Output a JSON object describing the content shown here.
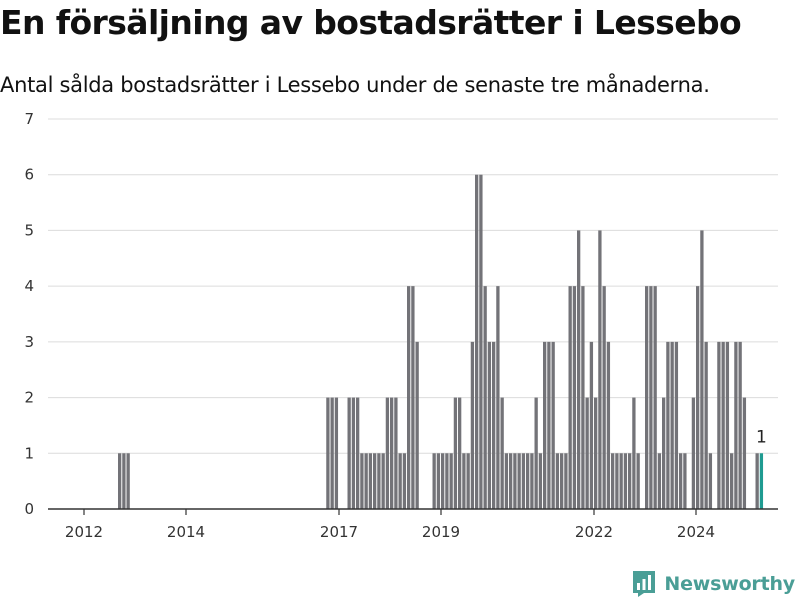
{
  "title": "En försäljning av bostadsrätter i Lessebo",
  "subtitle": "Antal sålda bostadsrätter i Lessebo under de senaste tre månaderna.",
  "brand": "Newsworthy",
  "colors": {
    "bar": "#737378",
    "highlight": "#1f9b91",
    "grid": "#dcdcdc",
    "axis": "#333333",
    "brand": "#4a9e96"
  },
  "chart_data": {
    "type": "bar",
    "title": "En försäljning av bostadsrätter i Lessebo",
    "subtitle": "Antal sålda bostadsrätter i Lessebo under de senaste tre månaderna.",
    "xlabel": "",
    "ylabel": "",
    "ylim": [
      0,
      7
    ],
    "yticks": [
      0,
      1,
      2,
      3,
      4,
      5,
      6,
      7
    ],
    "grid": true,
    "period": "quarter",
    "xticks": [
      {
        "year": 2012,
        "label": "2012"
      },
      {
        "year": 2014,
        "label": "2014"
      },
      {
        "year": 2017,
        "label": "2017"
      },
      {
        "year": 2019,
        "label": "2019"
      },
      {
        "year": 2022,
        "label": "2022"
      },
      {
        "year": 2024,
        "label": "2024"
      }
    ],
    "series": [
      {
        "values": [
          {
            "x": "2012-09",
            "y": 1
          },
          {
            "x": "2012-10",
            "y": 1
          },
          {
            "x": "2012-11",
            "y": 1
          },
          {
            "x": "2016-10",
            "y": 2
          },
          {
            "x": "2016-11",
            "y": 2
          },
          {
            "x": "2016-12",
            "y": 2
          },
          {
            "x": "2017-03",
            "y": 2
          },
          {
            "x": "2017-04",
            "y": 2
          },
          {
            "x": "2017-05",
            "y": 2
          },
          {
            "x": "2017-06",
            "y": 1
          },
          {
            "x": "2017-07",
            "y": 1
          },
          {
            "x": "2017-08",
            "y": 1
          },
          {
            "x": "2017-09",
            "y": 1
          },
          {
            "x": "2017-10",
            "y": 1
          },
          {
            "x": "2017-11",
            "y": 1
          },
          {
            "x": "2017-12",
            "y": 2
          },
          {
            "x": "2018-01",
            "y": 2
          },
          {
            "x": "2018-02",
            "y": 2
          },
          {
            "x": "2018-03",
            "y": 1
          },
          {
            "x": "2018-04",
            "y": 1
          },
          {
            "x": "2018-05",
            "y": 4
          },
          {
            "x": "2018-06",
            "y": 4
          },
          {
            "x": "2018-07",
            "y": 3
          },
          {
            "x": "2018-11",
            "y": 1
          },
          {
            "x": "2018-12",
            "y": 1
          },
          {
            "x": "2019-01",
            "y": 1
          },
          {
            "x": "2019-02",
            "y": 1
          },
          {
            "x": "2019-03",
            "y": 1
          },
          {
            "x": "2019-04",
            "y": 2
          },
          {
            "x": "2019-05",
            "y": 2
          },
          {
            "x": "2019-06",
            "y": 1
          },
          {
            "x": "2019-07",
            "y": 1
          },
          {
            "x": "2019-08",
            "y": 3
          },
          {
            "x": "2019-09",
            "y": 6
          },
          {
            "x": "2019-10",
            "y": 6
          },
          {
            "x": "2019-11",
            "y": 4
          },
          {
            "x": "2019-12",
            "y": 3
          },
          {
            "x": "2020-01",
            "y": 3
          },
          {
            "x": "2020-02",
            "y": 4
          },
          {
            "x": "2020-03",
            "y": 2
          },
          {
            "x": "2020-04",
            "y": 1
          },
          {
            "x": "2020-05",
            "y": 1
          },
          {
            "x": "2020-06",
            "y": 1
          },
          {
            "x": "2020-07",
            "y": 1
          },
          {
            "x": "2020-08",
            "y": 1
          },
          {
            "x": "2020-09",
            "y": 1
          },
          {
            "x": "2020-10",
            "y": 1
          },
          {
            "x": "2020-11",
            "y": 2
          },
          {
            "x": "2020-12",
            "y": 1
          },
          {
            "x": "2021-01",
            "y": 3
          },
          {
            "x": "2021-02",
            "y": 3
          },
          {
            "x": "2021-03",
            "y": 3
          },
          {
            "x": "2021-04",
            "y": 1
          },
          {
            "x": "2021-05",
            "y": 1
          },
          {
            "x": "2021-06",
            "y": 1
          },
          {
            "x": "2021-07",
            "y": 4
          },
          {
            "x": "2021-08",
            "y": 4
          },
          {
            "x": "2021-09",
            "y": 5
          },
          {
            "x": "2021-10",
            "y": 4
          },
          {
            "x": "2021-11",
            "y": 2
          },
          {
            "x": "2021-12",
            "y": 3
          },
          {
            "x": "2022-01",
            "y": 2
          },
          {
            "x": "2022-02",
            "y": 5
          },
          {
            "x": "2022-03",
            "y": 4
          },
          {
            "x": "2022-04",
            "y": 3
          },
          {
            "x": "2022-05",
            "y": 1
          },
          {
            "x": "2022-06",
            "y": 1
          },
          {
            "x": "2022-07",
            "y": 1
          },
          {
            "x": "2022-08",
            "y": 1
          },
          {
            "x": "2022-09",
            "y": 1
          },
          {
            "x": "2022-10",
            "y": 2
          },
          {
            "x": "2022-11",
            "y": 1
          },
          {
            "x": "2023-01",
            "y": 4
          },
          {
            "x": "2023-02",
            "y": 4
          },
          {
            "x": "2023-03",
            "y": 4
          },
          {
            "x": "2023-04",
            "y": 1
          },
          {
            "x": "2023-05",
            "y": 2
          },
          {
            "x": "2023-06",
            "y": 3
          },
          {
            "x": "2023-07",
            "y": 3
          },
          {
            "x": "2023-08",
            "y": 3
          },
          {
            "x": "2023-09",
            "y": 1
          },
          {
            "x": "2023-10",
            "y": 1
          },
          {
            "x": "2023-12",
            "y": 2
          },
          {
            "x": "2024-01",
            "y": 4
          },
          {
            "x": "2024-02",
            "y": 5
          },
          {
            "x": "2024-03",
            "y": 3
          },
          {
            "x": "2024-04",
            "y": 1
          },
          {
            "x": "2024-06",
            "y": 3
          },
          {
            "x": "2024-07",
            "y": 3
          },
          {
            "x": "2024-08",
            "y": 3
          },
          {
            "x": "2024-09",
            "y": 1
          },
          {
            "x": "2024-10",
            "y": 3
          },
          {
            "x": "2024-11",
            "y": 3
          },
          {
            "x": "2024-12",
            "y": 2
          },
          {
            "x": "2025-03",
            "y": 1
          }
        ]
      },
      {
        "highlight": true,
        "values": [
          {
            "x": "2025-04",
            "y": 1,
            "label": "1"
          }
        ]
      }
    ]
  }
}
